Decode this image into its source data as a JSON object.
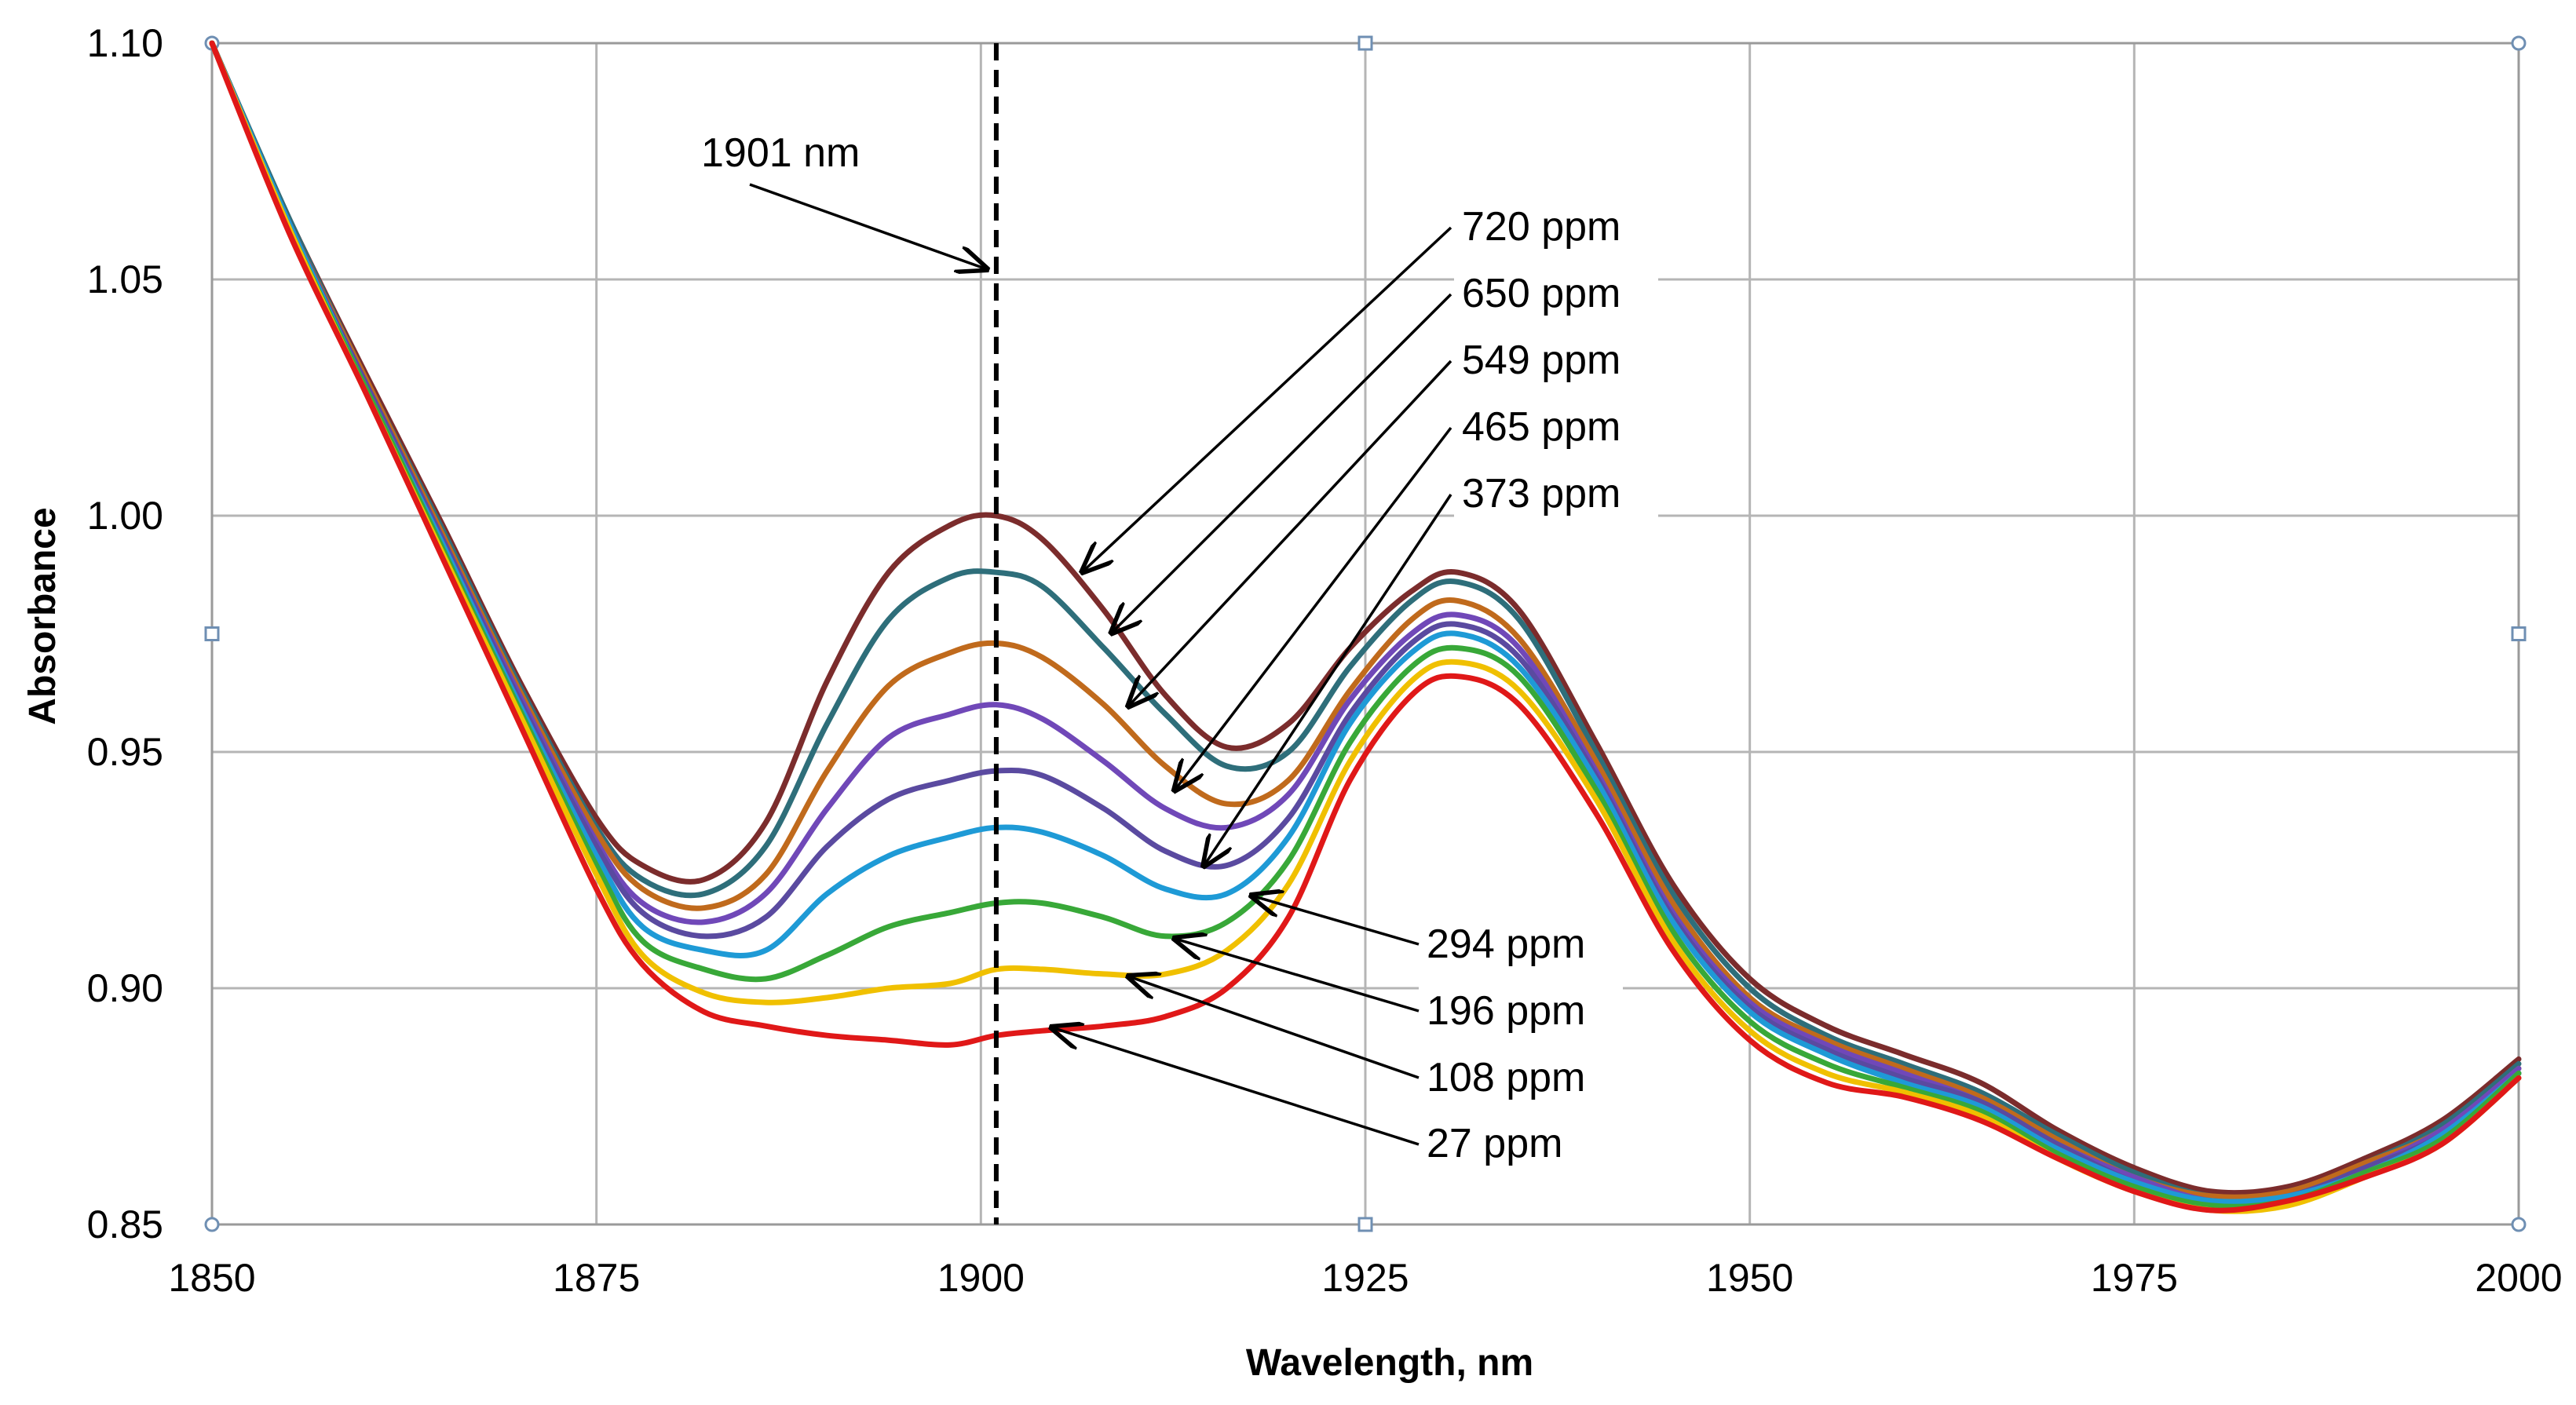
{
  "chart_data": {
    "type": "line",
    "xlabel": "Wavelength, nm",
    "ylabel": "Absorbance",
    "xlim": [
      1850,
      2000
    ],
    "ylim": [
      0.85,
      1.1
    ],
    "xticks": [
      1850,
      1875,
      1900,
      1925,
      1950,
      1975,
      2000
    ],
    "yticks": [
      0.85,
      0.9,
      0.95,
      1.0,
      1.05,
      1.1
    ],
    "xtick_labels": [
      "1850",
      "1875",
      "1900",
      "1925",
      "1950",
      "1975",
      "2000"
    ],
    "ytick_labels": [
      "0.85",
      "0.90",
      "0.95",
      "1.00",
      "1.05",
      "1.10"
    ],
    "grid": true,
    "x": [
      1850,
      1855,
      1860,
      1865,
      1870,
      1875,
      1878,
      1882,
      1886,
      1890,
      1894,
      1898,
      1901,
      1904,
      1908,
      1912,
      1916,
      1920,
      1924,
      1928,
      1931,
      1935,
      1940,
      1945,
      1950,
      1955,
      1960,
      1965,
      1970,
      1975,
      1980,
      1985,
      1990,
      1995,
      2000
    ],
    "vline": {
      "x": 1901,
      "label": "1901 nm"
    },
    "series": [
      {
        "name": "720 ppm",
        "color": "#7b2c2c",
        "values": [
          1.1,
          1.063,
          1.03,
          0.998,
          0.965,
          0.936,
          0.926,
          0.923,
          0.935,
          0.965,
          0.988,
          0.998,
          1.0,
          0.995,
          0.98,
          0.962,
          0.951,
          0.956,
          0.972,
          0.984,
          0.988,
          0.98,
          0.952,
          0.922,
          0.902,
          0.892,
          0.886,
          0.88,
          0.87,
          0.862,
          0.857,
          0.858,
          0.864,
          0.872,
          0.885
        ]
      },
      {
        "name": "650 ppm",
        "color": "#2e6e7a",
        "values": [
          1.1,
          1.063,
          1.029,
          0.997,
          0.964,
          0.934,
          0.923,
          0.92,
          0.93,
          0.956,
          0.978,
          0.987,
          0.988,
          0.985,
          0.972,
          0.958,
          0.947,
          0.95,
          0.968,
          0.982,
          0.986,
          0.978,
          0.95,
          0.92,
          0.9,
          0.89,
          0.884,
          0.878,
          0.869,
          0.861,
          0.856,
          0.857,
          0.863,
          0.871,
          0.884
        ]
      },
      {
        "name": "549 ppm",
        "color": "#c06a1c",
        "values": [
          1.1,
          1.062,
          1.029,
          0.996,
          0.963,
          0.933,
          0.921,
          0.917,
          0.924,
          0.946,
          0.964,
          0.971,
          0.973,
          0.97,
          0.96,
          0.947,
          0.939,
          0.944,
          0.963,
          0.978,
          0.982,
          0.974,
          0.948,
          0.918,
          0.898,
          0.889,
          0.883,
          0.877,
          0.868,
          0.86,
          0.856,
          0.857,
          0.863,
          0.87,
          0.883
        ]
      },
      {
        "name": "465 ppm",
        "color": "#7048b8",
        "values": [
          1.1,
          1.062,
          1.028,
          0.995,
          0.962,
          0.931,
          0.918,
          0.914,
          0.92,
          0.938,
          0.953,
          0.958,
          0.96,
          0.957,
          0.948,
          0.938,
          0.934,
          0.941,
          0.961,
          0.975,
          0.979,
          0.972,
          0.946,
          0.916,
          0.897,
          0.888,
          0.882,
          0.876,
          0.867,
          0.86,
          0.855,
          0.856,
          0.862,
          0.87,
          0.883
        ]
      },
      {
        "name": "373 ppm",
        "color": "#5a4aa0",
        "values": [
          1.1,
          1.062,
          1.028,
          0.995,
          0.961,
          0.93,
          0.916,
          0.911,
          0.915,
          0.93,
          0.94,
          0.944,
          0.946,
          0.945,
          0.938,
          0.929,
          0.926,
          0.936,
          0.958,
          0.973,
          0.977,
          0.97,
          0.945,
          0.915,
          0.896,
          0.887,
          0.881,
          0.876,
          0.867,
          0.859,
          0.855,
          0.856,
          0.862,
          0.869,
          0.882
        ]
      },
      {
        "name": "294 ppm",
        "color": "#1e9ad6",
        "values": [
          1.1,
          1.062,
          1.027,
          0.994,
          0.96,
          0.928,
          0.913,
          0.908,
          0.908,
          0.92,
          0.928,
          0.932,
          0.934,
          0.933,
          0.928,
          0.921,
          0.92,
          0.932,
          0.956,
          0.971,
          0.975,
          0.968,
          0.944,
          0.914,
          0.895,
          0.886,
          0.88,
          0.875,
          0.866,
          0.859,
          0.855,
          0.856,
          0.861,
          0.869,
          0.882
        ]
      },
      {
        "name": "196 ppm",
        "color": "#38a838",
        "values": [
          1.1,
          1.061,
          1.027,
          0.993,
          0.959,
          0.926,
          0.91,
          0.904,
          0.902,
          0.907,
          0.913,
          0.916,
          0.918,
          0.918,
          0.915,
          0.911,
          0.914,
          0.927,
          0.952,
          0.968,
          0.972,
          0.966,
          0.942,
          0.912,
          0.893,
          0.884,
          0.879,
          0.874,
          0.865,
          0.858,
          0.854,
          0.855,
          0.861,
          0.868,
          0.882
        ]
      },
      {
        "name": "108 ppm",
        "color": "#f0c000",
        "values": [
          1.1,
          1.061,
          1.026,
          0.992,
          0.958,
          0.924,
          0.907,
          0.899,
          0.897,
          0.898,
          0.9,
          0.901,
          0.904,
          0.904,
          0.903,
          0.903,
          0.908,
          0.922,
          0.948,
          0.965,
          0.969,
          0.963,
          0.94,
          0.91,
          0.891,
          0.882,
          0.878,
          0.873,
          0.864,
          0.857,
          0.853,
          0.854,
          0.86,
          0.867,
          0.881
        ]
      },
      {
        "name": "27 ppm",
        "color": "#e01818",
        "values": [
          1.1,
          1.06,
          1.026,
          0.991,
          0.956,
          0.921,
          0.905,
          0.895,
          0.892,
          0.89,
          0.889,
          0.888,
          0.89,
          0.891,
          0.892,
          0.894,
          0.9,
          0.915,
          0.944,
          0.962,
          0.966,
          0.96,
          0.937,
          0.908,
          0.889,
          0.88,
          0.877,
          0.872,
          0.864,
          0.857,
          0.853,
          0.855,
          0.86,
          0.867,
          0.881
        ]
      }
    ],
    "annotations": [
      {
        "label": "720 ppm",
        "target": [
          1906.6,
          0.9881
        ]
      },
      {
        "label": "650 ppm",
        "target": [
          1908.5,
          0.9752
        ]
      },
      {
        "label": "549 ppm",
        "target": [
          1909.6,
          0.9597
        ]
      },
      {
        "label": "465 ppm",
        "target": [
          1912.6,
          0.9419
        ]
      },
      {
        "label": "373 ppm",
        "target": [
          1914.5,
          0.9259
        ]
      },
      {
        "label": "294 ppm",
        "target": [
          1917.6,
          0.9196
        ]
      },
      {
        "label": "196 ppm",
        "target": [
          1912.6,
          0.9105
        ]
      },
      {
        "label": "108 ppm",
        "target": [
          1909.6,
          0.9025
        ]
      },
      {
        "label": "27 ppm",
        "target": [
          1904.6,
          0.8917
        ]
      }
    ]
  }
}
